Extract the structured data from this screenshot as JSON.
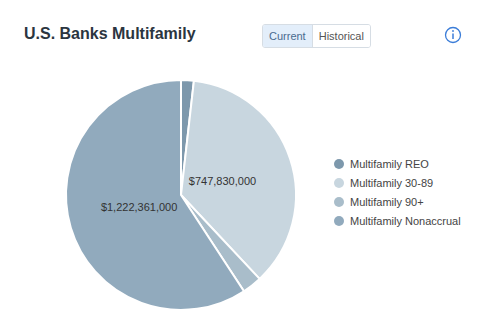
{
  "header": {
    "tabs": [
      "Current",
      "Historical"
    ],
    "selected_tab": "Current"
  },
  "chart_data": {
    "type": "pie",
    "title": "U.S. Banks Multifamily",
    "categories": [
      "Multifamily REO",
      "Multifamily 30-89",
      "Multifamily 90+",
      "Multifamily Nonaccrual"
    ],
    "values": [
      37000000,
      747830000,
      57000000,
      1222361000
    ],
    "value_labels": [
      null,
      "$747,830,000",
      null,
      "$1,222,361,000"
    ],
    "colors": [
      "#7d98ac",
      "#c8d6df",
      "#a9bdca",
      "#91aabd"
    ],
    "data_labels": true,
    "legend": "right"
  }
}
